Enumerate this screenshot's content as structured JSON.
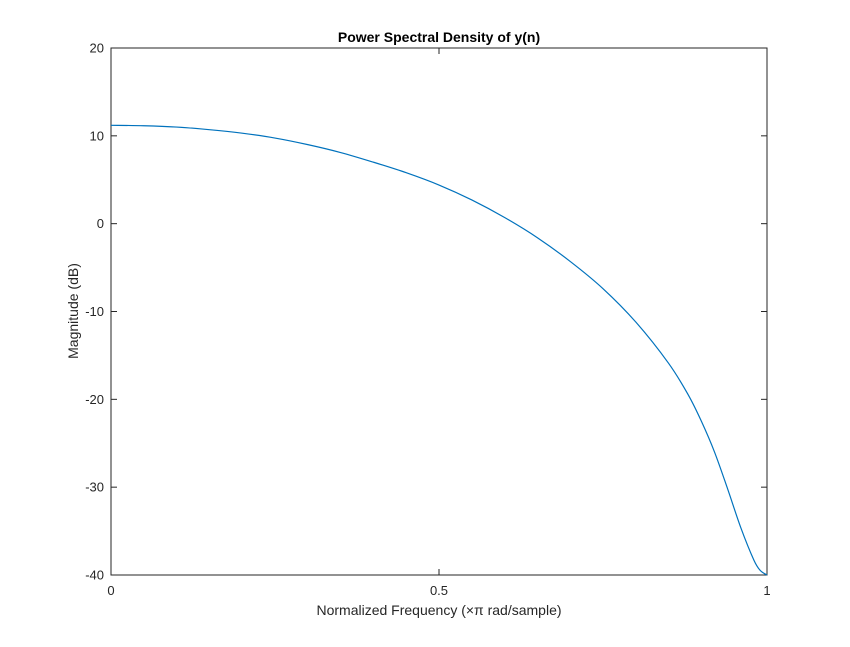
{
  "chart_data": {
    "type": "line",
    "title": "Power Spectral Density of y(n)",
    "xlabel": "Normalized Frequency (×π rad/sample)",
    "ylabel": "Magnitude (dB)",
    "xlim": [
      0,
      1
    ],
    "ylim": [
      -40,
      20
    ],
    "xticks": [
      0,
      0.5,
      1
    ],
    "xtick_labels": [
      "0",
      "0.5",
      "1"
    ],
    "yticks": [
      20,
      10,
      0,
      -10,
      -20,
      -30,
      -40
    ],
    "ytick_labels": [
      "20",
      "10",
      "0",
      "-10",
      "-20",
      "-30",
      "-40"
    ],
    "grid": false,
    "legend": "none",
    "line_color": "#0072bd",
    "series": [
      {
        "x": [
          0,
          0.05,
          0.1,
          0.15,
          0.2,
          0.25,
          0.3,
          0.35,
          0.4,
          0.45,
          0.5,
          0.55,
          0.6,
          0.65,
          0.7,
          0.75,
          0.8,
          0.85,
          0.88,
          0.9,
          0.92,
          0.94,
          0.96,
          0.98,
          0.99,
          1.0
        ],
        "y": [
          11.2,
          11.15,
          11.0,
          10.7,
          10.3,
          9.75,
          9.0,
          8.1,
          7.0,
          5.8,
          4.4,
          2.7,
          0.7,
          -1.6,
          -4.3,
          -7.4,
          -11.2,
          -15.9,
          -19.5,
          -22.5,
          -26.0,
          -30.2,
          -34.6,
          -38.3,
          -39.5,
          -40.0
        ]
      }
    ]
  }
}
